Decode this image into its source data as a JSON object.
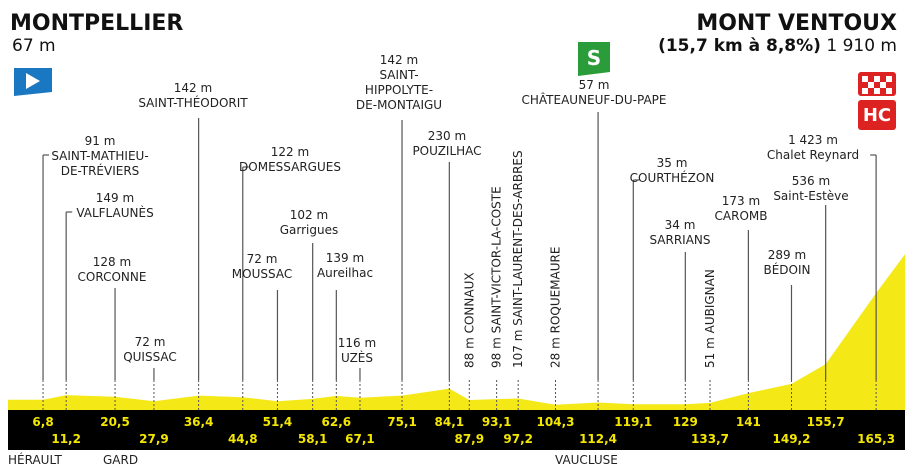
{
  "start": {
    "name": "MONTPELLIER",
    "altitude": {
      "value": 67,
      "label": "67 m"
    }
  },
  "finish": {
    "name": "MONT VENTOUX",
    "climb": "(15,7 km à 8,8%)",
    "altitude": {
      "value": 1910,
      "label": "1 910 m"
    },
    "category": "HC"
  },
  "sprint": "S",
  "waypoints": [
    {
      "km": {
        "value": 6.8,
        "label": "6,8"
      },
      "altitude": {
        "value": 91,
        "label": "91 m"
      },
      "name": [
        "SAINT-MATHIEU-",
        "DE-TRÉVIERS"
      ]
    },
    {
      "km": {
        "value": 11.2,
        "label": "11,2"
      },
      "altitude": {
        "value": 149,
        "label": "149 m"
      },
      "name": [
        "VALFLAUNÈS"
      ]
    },
    {
      "km": {
        "value": 20.5,
        "label": "20,5"
      },
      "altitude": {
        "value": 128,
        "label": "128 m"
      },
      "name": [
        "CORCONNE"
      ]
    },
    {
      "km": {
        "value": 27.9,
        "label": "27,9"
      },
      "altitude": {
        "value": 72,
        "label": "72 m"
      },
      "name": [
        "QUISSAC"
      ]
    },
    {
      "km": {
        "value": 36.4,
        "label": "36,4"
      },
      "altitude": {
        "value": 142,
        "label": "142 m"
      },
      "name": [
        "SAINT-THÉODORIT"
      ]
    },
    {
      "km": {
        "value": 44.8,
        "label": "44,8"
      },
      "altitude": {
        "value": 122,
        "label": "122 m"
      },
      "name": [
        "DOMESSARGUES"
      ]
    },
    {
      "km": {
        "value": 51.4,
        "label": "51,4"
      },
      "altitude": {
        "value": 72,
        "label": "72 m"
      },
      "name": [
        "MOUSSAC"
      ]
    },
    {
      "km": {
        "value": 58.1,
        "label": "58,1"
      },
      "altitude": {
        "value": 102,
        "label": "102 m"
      },
      "name": [
        "Garrigues"
      ]
    },
    {
      "km": {
        "value": 62.6,
        "label": "62,6"
      },
      "altitude": {
        "value": 139,
        "label": "139 m"
      },
      "name": [
        "Aureilhac"
      ]
    },
    {
      "km": {
        "value": 67.1,
        "label": "67,1"
      },
      "altitude": {
        "value": 116,
        "label": "116 m"
      },
      "name": [
        "UZÈS"
      ]
    },
    {
      "km": {
        "value": 75.1,
        "label": "75,1"
      },
      "altitude": {
        "value": 142,
        "label": "142 m"
      },
      "name": [
        "SAINT-",
        "HIPPOLYTE-",
        "DE-MONTAIGU"
      ]
    },
    {
      "km": {
        "value": 84.1,
        "label": "84,1"
      },
      "altitude": {
        "value": 230,
        "label": "230 m"
      },
      "name": [
        "POUZILHAC"
      ]
    },
    {
      "km": {
        "value": 87.9,
        "label": "87,9"
      },
      "altitude": {
        "value": 88,
        "label": "88 m"
      },
      "name": [
        "CONNAUX"
      ]
    },
    {
      "km": {
        "value": 93.1,
        "label": "93,1"
      },
      "altitude": {
        "value": 98,
        "label": "98 m"
      },
      "name": [
        "SAINT-VICTOR-LA-COSTE"
      ]
    },
    {
      "km": {
        "value": 97.2,
        "label": "97,2"
      },
      "altitude": {
        "value": 107,
        "label": "107 m"
      },
      "name": [
        "SAINT-LAURENT-DES-ARBRES"
      ]
    },
    {
      "km": {
        "value": 104.3,
        "label": "104,3"
      },
      "altitude": {
        "value": 28,
        "label": "28 m"
      },
      "name": [
        "ROQUEMAURE"
      ]
    },
    {
      "km": {
        "value": 112.4,
        "label": "112,4"
      },
      "altitude": {
        "value": 57,
        "label": "57 m"
      },
      "name": [
        "CHÂTEAUNEUF-DU-PAPE"
      ]
    },
    {
      "km": {
        "value": 119.1,
        "label": "119,1"
      },
      "altitude": {
        "value": 35,
        "label": "35 m"
      },
      "name": [
        "COURTHÉZON"
      ]
    },
    {
      "km": {
        "value": 129,
        "label": "129"
      },
      "altitude": {
        "value": 34,
        "label": "34 m"
      },
      "name": [
        "SARRIANS"
      ]
    },
    {
      "km": {
        "value": 133.7,
        "label": "133,7"
      },
      "altitude": {
        "value": 51,
        "label": "51 m"
      },
      "name": [
        "AUBIGNAN"
      ]
    },
    {
      "km": {
        "value": 141,
        "label": "141"
      },
      "altitude": {
        "value": 173,
        "label": "173 m"
      },
      "name": [
        "CAROMB"
      ]
    },
    {
      "km": {
        "value": 149.2,
        "label": "149,2"
      },
      "altitude": {
        "value": 289,
        "label": "289 m"
      },
      "name": [
        "BÉDOIN"
      ]
    },
    {
      "km": {
        "value": 155.7,
        "label": "155,7"
      },
      "altitude": {
        "value": 536,
        "label": "536 m"
      },
      "name": [
        "Saint-Estève"
      ]
    },
    {
      "km": {
        "value": 165.3,
        "label": "165,3"
      },
      "altitude": {
        "value": 1423,
        "label": "1 423 m"
      },
      "name": [
        "Chalet Reynard"
      ]
    }
  ],
  "regions": [
    "HÉRAULT",
    "GARD",
    "VAUCLUSE"
  ]
}
